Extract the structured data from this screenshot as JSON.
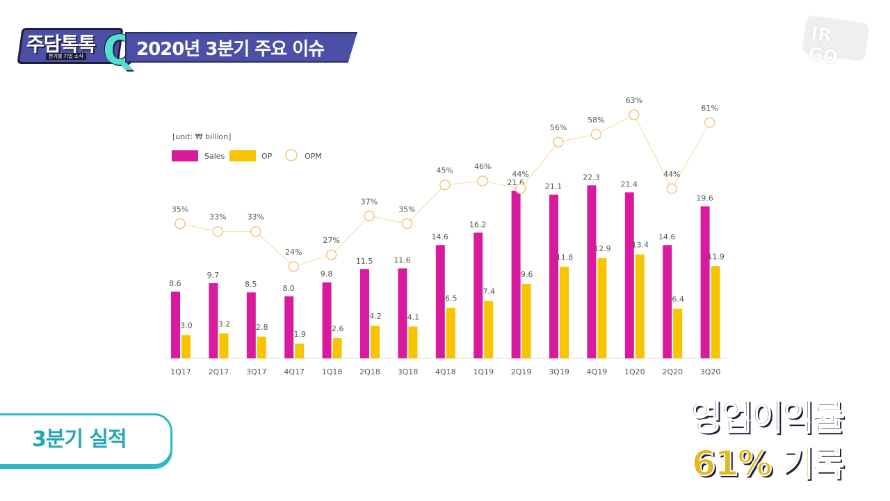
{
  "header": {
    "logo_text": "주담톡톡",
    "logo_q": "Q",
    "logo_sub": "분기별 기업 소식",
    "title": "2020년 3분기 주요 이슈"
  },
  "watermark": "IR GO",
  "tag_label": "3분기 실적",
  "caption": {
    "line1": "영업이익률",
    "line2": "61% 기록"
  },
  "colors": {
    "sales": "#d81b9c",
    "op": "#f7c400",
    "opm": "#f2c57a",
    "accent": "#2fb8c4"
  },
  "chart_data": {
    "type": "bar",
    "unit_label": "[unit: ₩ billion]",
    "categories": [
      "1Q17",
      "2Q17",
      "3Q17",
      "4Q17",
      "1Q18",
      "2Q18",
      "3Q18",
      "4Q18",
      "1Q19",
      "2Q19",
      "3Q19",
      "4Q19",
      "1Q20",
      "2Q20",
      "3Q20"
    ],
    "series": [
      {
        "name": "Sales",
        "values": [
          8.6,
          9.7,
          8.5,
          8.0,
          9.8,
          11.5,
          11.6,
          14.6,
          16.2,
          21.6,
          21.1,
          22.3,
          21.4,
          14.6,
          19.6
        ]
      },
      {
        "name": "OP",
        "values": [
          3.0,
          3.2,
          2.8,
          1.9,
          2.6,
          4.2,
          4.1,
          6.5,
          7.4,
          9.6,
          11.8,
          12.9,
          13.4,
          6.4,
          11.9
        ]
      }
    ],
    "line_series": {
      "name": "OPM",
      "values": [
        35,
        33,
        33,
        24,
        27,
        37,
        35,
        45,
        46,
        44,
        56,
        58,
        63,
        44,
        61
      ],
      "labels": [
        "35%",
        "33%",
        "33%",
        "24%",
        "27%",
        "37%",
        "35%",
        "45%",
        "46%",
        "44%",
        "56%",
        "58%",
        "63%",
        "44%",
        "61%"
      ]
    },
    "value_labels": {
      "sales": [
        "8.6",
        "9.7",
        "8.5",
        "8.0",
        "9.8",
        "11.5",
        "11.6",
        "14.6",
        "16.2",
        "21.6",
        "21.1",
        "22.3",
        "21.4",
        "14.6",
        "19.6"
      ],
      "op": [
        "3.0",
        "3.2",
        "2.8",
        "1.9",
        "2.6",
        "4.2",
        "4.1",
        "6.5",
        "7.4",
        "9.6",
        "11.8",
        "12.9",
        "13.4",
        "6.4",
        "11.9"
      ]
    },
    "legend": [
      "Sales",
      "OP",
      "OPM"
    ],
    "ylim": [
      0,
      24
    ]
  }
}
